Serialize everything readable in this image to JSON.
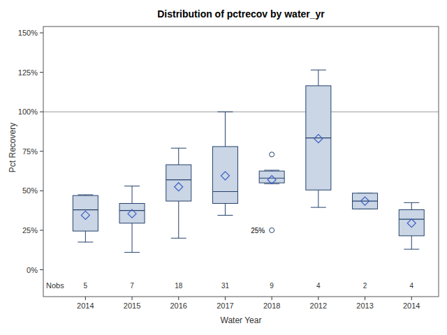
{
  "chart_data": {
    "type": "box",
    "title": "Distribution of pctrecov by water_yr",
    "x_label": "Water Year",
    "y_label": "Pct Recovery",
    "categories": [
      "2014",
      "2015",
      "2016",
      "2017",
      "2018",
      "2012",
      "2013",
      "2014"
    ],
    "boxes": [
      {
        "min": 17.5,
        "q1": 24.5,
        "median": 38,
        "q3": 47,
        "max": 47.5,
        "mean": 34.5,
        "outliers": []
      },
      {
        "min": 11,
        "q1": 29.5,
        "median": 37.5,
        "q3": 42,
        "max": 53,
        "mean": 35.5,
        "outliers": []
      },
      {
        "min": 20,
        "q1": 43.5,
        "median": 57,
        "q3": 66.5,
        "max": 77,
        "mean": 52.5,
        "outliers": []
      },
      {
        "min": 34.5,
        "q1": 42,
        "median": 49.5,
        "q3": 78,
        "max": 100,
        "mean": 59.5,
        "outliers": []
      },
      {
        "min": 54.5,
        "q1": 55,
        "median": 58,
        "q3": 62.5,
        "max": 63,
        "mean": 57,
        "outliers": [
          {
            "value": 73
          },
          {
            "value": 25,
            "label": "25%"
          }
        ]
      },
      {
        "min": 39.5,
        "q1": 50.5,
        "median": 83.5,
        "q3": 116.5,
        "max": 126.5,
        "mean": 83,
        "outliers": []
      },
      {
        "min": 38.5,
        "q1": 38.5,
        "median": 43.5,
        "q3": 48.5,
        "max": 48.5,
        "mean": 43.5,
        "outliers": []
      },
      {
        "min": 13,
        "q1": 21.5,
        "median": 32,
        "q3": 38,
        "max": 42.5,
        "mean": 29.5,
        "outliers": []
      }
    ],
    "nobs_label": "Nobs",
    "nobs": [
      5,
      7,
      18,
      31,
      9,
      4,
      2,
      4
    ],
    "reference_line": 100,
    "ylim": [
      -17,
      154
    ],
    "yticks": [
      {
        "value": 0,
        "label": "0%"
      },
      {
        "value": 25,
        "label": "25%"
      },
      {
        "value": 50,
        "label": "50%"
      },
      {
        "value": 75,
        "label": "75%"
      },
      {
        "value": 100,
        "label": "100%"
      },
      {
        "value": 125,
        "label": "125%"
      },
      {
        "value": 150,
        "label": "150%"
      }
    ],
    "color": "#cad5e5",
    "marker": "diamond"
  }
}
